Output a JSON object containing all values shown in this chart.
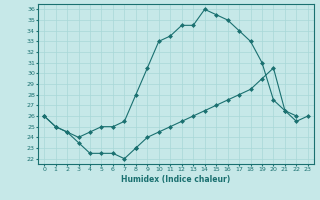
{
  "xlabel": "Humidex (Indice chaleur)",
  "xlim": [
    -0.5,
    23.5
  ],
  "ylim": [
    21.5,
    36.5
  ],
  "xticks": [
    0,
    1,
    2,
    3,
    4,
    5,
    6,
    7,
    8,
    9,
    10,
    11,
    12,
    13,
    14,
    15,
    16,
    17,
    18,
    19,
    20,
    21,
    22,
    23
  ],
  "yticks": [
    22,
    23,
    24,
    25,
    26,
    27,
    28,
    29,
    30,
    31,
    32,
    33,
    34,
    35,
    36
  ],
  "bg_color": "#c6e8e8",
  "line_color": "#1a7070",
  "grid_color": "#a8d8d8",
  "line1_x": [
    0,
    1,
    2,
    3,
    4,
    5,
    6,
    7,
    8
  ],
  "line1_y": [
    26.0,
    25.0,
    24.5,
    23.5,
    22.5,
    22.5,
    22.5,
    22.0,
    23.0
  ],
  "line2_x": [
    0,
    1,
    2,
    3,
    4,
    5,
    6,
    7,
    8,
    9,
    10,
    11,
    12,
    13,
    14,
    15,
    16,
    17,
    18,
    19,
    20,
    21,
    22
  ],
  "line2_y": [
    26.0,
    25.0,
    24.5,
    24.0,
    24.5,
    25.0,
    25.0,
    25.5,
    28.0,
    30.5,
    33.0,
    33.5,
    34.5,
    34.5,
    36.0,
    35.5,
    35.0,
    34.0,
    33.0,
    31.0,
    27.5,
    26.5,
    26.0
  ],
  "line3_x": [
    8,
    9,
    10,
    11,
    12,
    13,
    14,
    15,
    16,
    17,
    18,
    19,
    20,
    21,
    22,
    23
  ],
  "line3_y": [
    23.0,
    24.0,
    24.5,
    25.0,
    25.5,
    26.0,
    26.5,
    27.0,
    27.5,
    28.0,
    28.5,
    29.5,
    30.5,
    26.5,
    25.5,
    26.0
  ]
}
